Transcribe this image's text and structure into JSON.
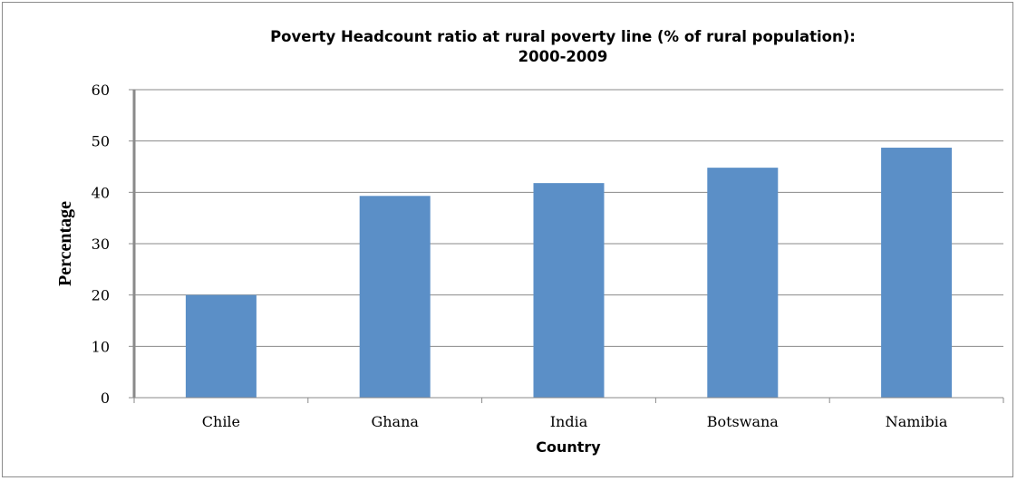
{
  "chart_data": {
    "type": "bar",
    "title": "Poverty Headcount ratio at rural poverty line (% of rural population): 2000-2009",
    "title_lines": [
      "Poverty Headcount ratio at rural poverty line (% of rural population):",
      "2000-2009"
    ],
    "xlabel": "Country",
    "ylabel": "Percentage",
    "categories": [
      "Chile",
      "Ghana",
      "India",
      "Botswana",
      "Namibia"
    ],
    "values": [
      20.0,
      39.3,
      41.8,
      44.8,
      48.7
    ],
    "ylim": [
      0,
      60
    ],
    "yticks": [
      "0",
      "10",
      "20",
      "30",
      "40",
      "50",
      "60"
    ],
    "grid": true,
    "legend": "none",
    "bar_color": "#5b8fc7"
  }
}
